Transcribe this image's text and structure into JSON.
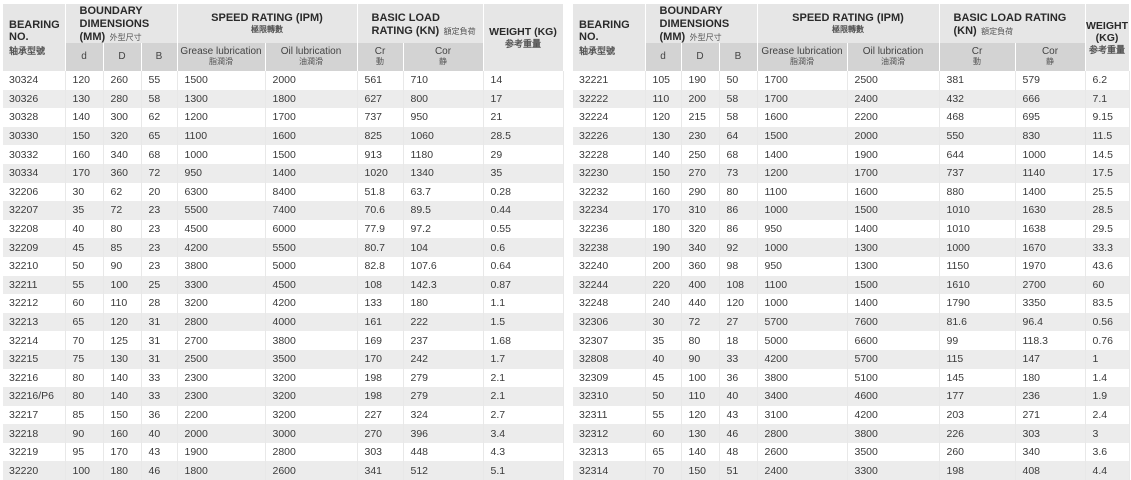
{
  "header": {
    "bearing_no_en": "BEARING NO.",
    "bearing_no_cn": "轴承型號",
    "boundary_en": "BOUNDARY DIMENSIONS (MM)",
    "boundary_cn": "外型尺寸",
    "speed_en": "SPEED RATING (IPM)",
    "speed_cn": "極限轉數",
    "load_en": "BASIC LOAD RATING (KN)",
    "load_cn": "額定負荷",
    "weight_en": "WEIGHT (KG)",
    "weight_cn": "参考重量",
    "d": "d",
    "D": "D",
    "B": "B",
    "grease_en": "Grease lubrication",
    "grease_cn": "脂潤滑",
    "oil_en": "Oil lubrication",
    "oil_cn": "油潤滑",
    "cr_en": "Cr",
    "cr_cn": "動",
    "cor_en": "Cor",
    "cor_cn": "静"
  },
  "left_rows": [
    [
      "30324",
      "120",
      "260",
      "55",
      "1500",
      "2000",
      "561",
      "710",
      "14"
    ],
    [
      "30326",
      "130",
      "280",
      "58",
      "1300",
      "1800",
      "627",
      "800",
      "17"
    ],
    [
      "30328",
      "140",
      "300",
      "62",
      "1200",
      "1700",
      "737",
      "950",
      "21"
    ],
    [
      "30330",
      "150",
      "320",
      "65",
      "1100",
      "1600",
      "825",
      "1060",
      "28.5"
    ],
    [
      "30332",
      "160",
      "340",
      "68",
      "1000",
      "1500",
      "913",
      "1180",
      "29"
    ],
    [
      "30334",
      "170",
      "360",
      "72",
      "950",
      "1400",
      "1020",
      "1340",
      "35"
    ],
    [
      "32206",
      "30",
      "62",
      "20",
      "6300",
      "8400",
      "51.8",
      "63.7",
      "0.28"
    ],
    [
      "32207",
      "35",
      "72",
      "23",
      "5500",
      "7400",
      "70.6",
      "89.5",
      "0.44"
    ],
    [
      "32208",
      "40",
      "80",
      "23",
      "4500",
      "6000",
      "77.9",
      "97.2",
      "0.55"
    ],
    [
      "32209",
      "45",
      "85",
      "23",
      "4200",
      "5500",
      "80.7",
      "104",
      "0.6"
    ],
    [
      "32210",
      "50",
      "90",
      "23",
      "3800",
      "5000",
      "82.8",
      "107.6",
      "0.64"
    ],
    [
      "32211",
      "55",
      "100",
      "25",
      "3300",
      "4500",
      "108",
      "142.3",
      "0.87"
    ],
    [
      "32212",
      "60",
      "110",
      "28",
      "3200",
      "4200",
      "133",
      "180",
      "1.1"
    ],
    [
      "32213",
      "65",
      "120",
      "31",
      "2800",
      "4000",
      "161",
      "222",
      "1.5"
    ],
    [
      "32214",
      "70",
      "125",
      "31",
      "2700",
      "3800",
      "169",
      "237",
      "1.68"
    ],
    [
      "32215",
      "75",
      "130",
      "31",
      "2500",
      "3500",
      "170",
      "242",
      "1.7"
    ],
    [
      "32216",
      "80",
      "140",
      "33",
      "2300",
      "3200",
      "198",
      "279",
      "2.1"
    ],
    [
      "32216/P6",
      "80",
      "140",
      "33",
      "2300",
      "3200",
      "198",
      "279",
      "2.1"
    ],
    [
      "32217",
      "85",
      "150",
      "36",
      "2200",
      "3200",
      "227",
      "324",
      "2.7"
    ],
    [
      "32218",
      "90",
      "160",
      "40",
      "2000",
      "3000",
      "270",
      "396",
      "3.4"
    ],
    [
      "32219",
      "95",
      "170",
      "43",
      "1900",
      "2800",
      "303",
      "448",
      "4.3"
    ],
    [
      "32220",
      "100",
      "180",
      "46",
      "1800",
      "2600",
      "341",
      "512",
      "5.1"
    ]
  ],
  "right_rows": [
    [
      "32221",
      "105",
      "190",
      "50",
      "1700",
      "2500",
      "381",
      "579",
      "6.2"
    ],
    [
      "32222",
      "110",
      "200",
      "58",
      "1700",
      "2400",
      "432",
      "666",
      "7.1"
    ],
    [
      "32224",
      "120",
      "215",
      "58",
      "1600",
      "2200",
      "468",
      "695",
      "9.15"
    ],
    [
      "32226",
      "130",
      "230",
      "64",
      "1500",
      "2000",
      "550",
      "830",
      "11.5"
    ],
    [
      "32228",
      "140",
      "250",
      "68",
      "1400",
      "1900",
      "644",
      "1000",
      "14.5"
    ],
    [
      "32230",
      "150",
      "270",
      "73",
      "1200",
      "1700",
      "737",
      "1140",
      "17.5"
    ],
    [
      "32232",
      "160",
      "290",
      "80",
      "1100",
      "1600",
      "880",
      "1400",
      "25.5"
    ],
    [
      "32234",
      "170",
      "310",
      "86",
      "1000",
      "1500",
      "1010",
      "1630",
      "28.5"
    ],
    [
      "32236",
      "180",
      "320",
      "86",
      "950",
      "1400",
      "1010",
      "1638",
      "29.5"
    ],
    [
      "32238",
      "190",
      "340",
      "92",
      "1000",
      "1300",
      "1000",
      "1670",
      "33.3"
    ],
    [
      "32240",
      "200",
      "360",
      "98",
      "950",
      "1300",
      "1150",
      "1970",
      "43.6"
    ],
    [
      "32244",
      "220",
      "400",
      "108",
      "1100",
      "1500",
      "1610",
      "2700",
      "60"
    ],
    [
      "32248",
      "240",
      "440",
      "120",
      "1000",
      "1400",
      "1790",
      "3350",
      "83.5"
    ],
    [
      "32306",
      "30",
      "72",
      "27",
      "5700",
      "7600",
      "81.6",
      "96.4",
      "0.56"
    ],
    [
      "32307",
      "35",
      "80",
      "18",
      "5000",
      "6600",
      "99",
      "118.3",
      "0.76"
    ],
    [
      "32808",
      "40",
      "90",
      "33",
      "4200",
      "5700",
      "115",
      "147",
      "1"
    ],
    [
      "32309",
      "45",
      "100",
      "36",
      "3800",
      "5100",
      "145",
      "180",
      "1.4"
    ],
    [
      "32310",
      "50",
      "110",
      "40",
      "3400",
      "4600",
      "177",
      "236",
      "1.9"
    ],
    [
      "32311",
      "55",
      "120",
      "43",
      "3100",
      "4200",
      "203",
      "271",
      "2.4"
    ],
    [
      "32312",
      "60",
      "130",
      "46",
      "2800",
      "3800",
      "226",
      "303",
      "3"
    ],
    [
      "32313",
      "65",
      "140",
      "48",
      "2600",
      "3500",
      "260",
      "340",
      "3.6"
    ],
    [
      "32314",
      "70",
      "150",
      "51",
      "2400",
      "3300",
      "198",
      "408",
      "4.4"
    ]
  ]
}
